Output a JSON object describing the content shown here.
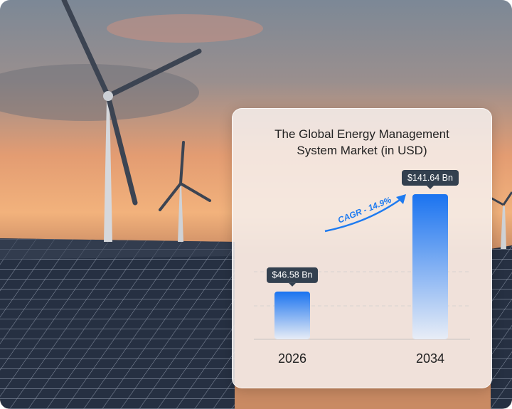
{
  "chart_data": {
    "type": "bar",
    "title": "The Global Energy Management System Market (in USD)",
    "categories": [
      "2026",
      "2034"
    ],
    "values": [
      46.58,
      141.64
    ],
    "value_labels": [
      "$46.58 Bn",
      "$141.64 Bn"
    ],
    "annotation": "CAGR - 14.9%",
    "color": "#1a73f0"
  }
}
